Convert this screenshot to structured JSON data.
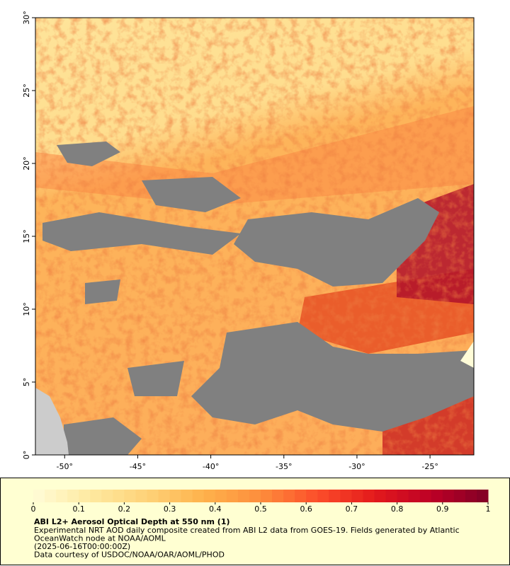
{
  "map": {
    "xlim": [
      -52,
      -22
    ],
    "ylim": [
      0,
      30
    ],
    "xticks": [
      {
        "value": -50,
        "label": "-50°"
      },
      {
        "value": -45,
        "label": "-45°"
      },
      {
        "value": -40,
        "label": "-40°"
      },
      {
        "value": -35,
        "label": "-35°"
      },
      {
        "value": -30,
        "label": "-30°"
      },
      {
        "value": -25,
        "label": "-25°"
      }
    ],
    "yticks": [
      {
        "value": 0,
        "label": "0°"
      },
      {
        "value": 5,
        "label": "5°"
      },
      {
        "value": 10,
        "label": "10°"
      },
      {
        "value": 15,
        "label": "15°"
      },
      {
        "value": 20,
        "label": "20°"
      },
      {
        "value": 25,
        "label": "25°"
      },
      {
        "value": 30,
        "label": "30°"
      }
    ]
  },
  "colorbar": {
    "range": [
      0,
      1
    ],
    "ticks": [
      0,
      0.1,
      0.2,
      0.3,
      0.4,
      0.5,
      0.6,
      0.7,
      0.8,
      0.9,
      1
    ],
    "colors": [
      "#fffcd8",
      "#fee9a0",
      "#fed278",
      "#feb24c",
      "#fd8d3c",
      "#fc4e2a",
      "#e31a1c",
      "#bd0026",
      "#800026"
    ]
  },
  "caption": {
    "title": "ABI L2+ Aerosol Optical Depth at 550 nm (1)",
    "lines": [
      "Experimental NRT AOD daily composite created from ABI L2 data from GOES-19. Fields generated by Atlantic",
      "OceanWatch node at NOAA/AOML",
      "(2025-06-16T00:00:00Z)",
      "Data courtesy of USDOC/NOAA/OAR/AOML/PHOD"
    ]
  }
}
